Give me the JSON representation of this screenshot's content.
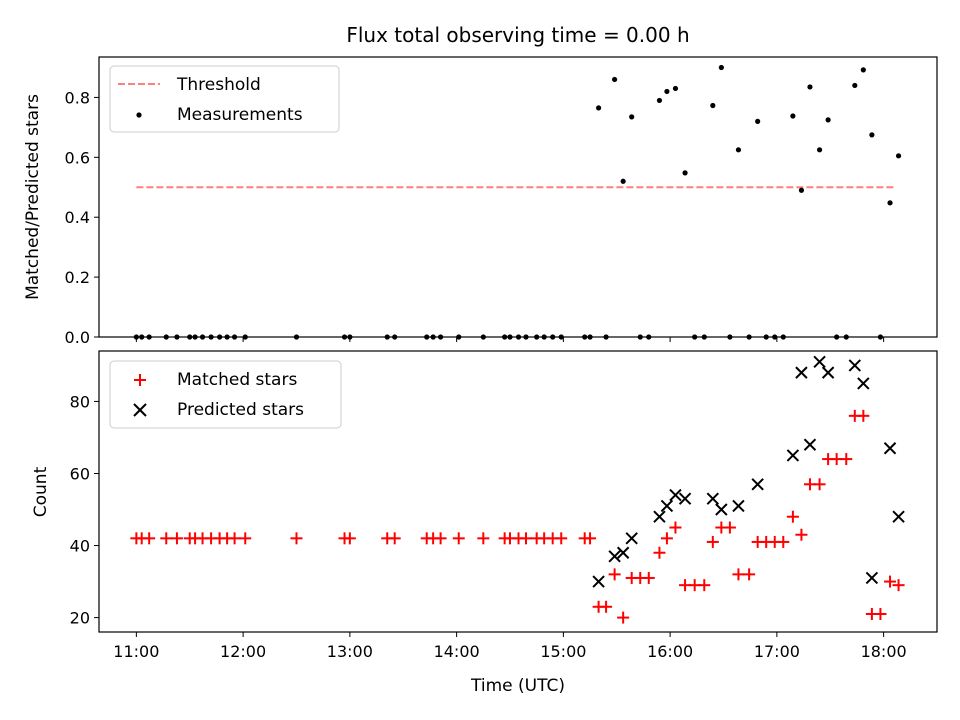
{
  "chart_data": {
    "title": "Flux total observing time = 0.00 h",
    "xlabel": "Time (UTC)",
    "x_ticks": [
      "11:00",
      "12:00",
      "13:00",
      "14:00",
      "15:00",
      "16:00",
      "17:00",
      "18:00"
    ],
    "x_tick_values": [
      11,
      12,
      13,
      14,
      15,
      16,
      17,
      18
    ],
    "xlim": [
      10.65,
      18.5
    ],
    "panels": [
      {
        "type": "scatter",
        "ylabel": "Matched/Predicted stars",
        "ylim": [
          0,
          0.935
        ],
        "y_ticks": [
          0.0,
          0.2,
          0.4,
          0.6,
          0.8
        ],
        "y_tick_labels": [
          "0.0",
          "0.2",
          "0.4",
          "0.6",
          "0.8"
        ],
        "legend": [
          "Threshold",
          "Measurements"
        ],
        "legend_position": "upper-left",
        "threshold": {
          "name": "Threshold",
          "value": 0.5,
          "x_range": [
            11.0,
            18.1
          ],
          "color": "#ff7f7f",
          "style": "dashed"
        },
        "series": [
          {
            "name": "Measurements",
            "marker": "dot",
            "color": "#000000",
            "x": [
              11.0,
              11.05,
              11.12,
              11.28,
              11.38,
              11.5,
              11.55,
              11.62,
              11.7,
              11.78,
              11.85,
              11.92,
              12.02,
              12.5,
              12.95,
              13.0,
              13.35,
              13.42,
              13.72,
              13.78,
              13.85,
              14.02,
              14.25,
              14.45,
              14.5,
              14.58,
              14.65,
              14.75,
              14.82,
              14.9,
              14.98,
              15.2,
              15.25,
              15.33,
              15.4,
              15.48,
              15.56,
              15.64,
              15.72,
              15.8,
              15.9,
              15.97,
              16.05,
              16.14,
              16.23,
              16.32,
              16.4,
              16.48,
              16.56,
              16.64,
              16.74,
              16.82,
              16.9,
              16.98,
              17.06,
              17.15,
              17.23,
              17.31,
              17.4,
              17.48,
              17.56,
              17.65,
              17.73,
              17.81,
              17.89,
              17.97,
              18.06,
              18.14
            ],
            "y": [
              0,
              0,
              0,
              0,
              0,
              0,
              0,
              0,
              0,
              0,
              0,
              0,
              0,
              0,
              0,
              0,
              0,
              0,
              0,
              0,
              0,
              0,
              0,
              0,
              0,
              0,
              0,
              0,
              0,
              0,
              0,
              0,
              0,
              0.765,
              0,
              0.86,
              0.52,
              0.735,
              0,
              0,
              0.79,
              0.82,
              0.83,
              0.548,
              0,
              0,
              0.773,
              0.9,
              0,
              0.625,
              0,
              0.72,
              0,
              0,
              0,
              0.738,
              0.49,
              0.835,
              0.625,
              0.725,
              0,
              0,
              0.84,
              0.892,
              0.675,
              0,
              0.448,
              0.605
            ]
          }
        ]
      },
      {
        "type": "scatter",
        "ylabel": "Count",
        "ylim": [
          16,
          94
        ],
        "y_ticks": [
          20,
          40,
          60,
          80
        ],
        "y_tick_labels": [
          "20",
          "40",
          "60",
          "80"
        ],
        "legend": [
          "Matched stars",
          "Predicted stars"
        ],
        "legend_position": "upper-left",
        "series": [
          {
            "name": "Matched stars",
            "marker": "plus",
            "color": "#ff0000",
            "x": [
              11.0,
              11.05,
              11.12,
              11.28,
              11.38,
              11.5,
              11.55,
              11.62,
              11.7,
              11.78,
              11.85,
              11.92,
              12.02,
              12.5,
              12.95,
              13.0,
              13.35,
              13.42,
              13.72,
              13.78,
              13.85,
              14.02,
              14.25,
              14.45,
              14.5,
              14.58,
              14.65,
              14.75,
              14.82,
              14.9,
              14.98,
              15.2,
              15.25,
              15.33,
              15.4,
              15.48,
              15.56,
              15.64,
              15.72,
              15.8,
              15.9,
              15.97,
              16.05,
              16.14,
              16.23,
              16.32,
              16.4,
              16.48,
              16.56,
              16.64,
              16.74,
              16.82,
              16.9,
              16.98,
              17.06,
              17.15,
              17.23,
              17.31,
              17.4,
              17.48,
              17.56,
              17.65,
              17.73,
              17.81,
              17.89,
              17.97,
              18.06,
              18.14
            ],
            "y": [
              42,
              42,
              42,
              42,
              42,
              42,
              42,
              42,
              42,
              42,
              42,
              42,
              42,
              42,
              42,
              42,
              42,
              42,
              42,
              42,
              42,
              42,
              42,
              42,
              42,
              42,
              42,
              42,
              42,
              42,
              42,
              42,
              42,
              23,
              23,
              32,
              20,
              31,
              31,
              31,
              38,
              42,
              45,
              29,
              29,
              29,
              41,
              45,
              45,
              32,
              32,
              41,
              41,
              41,
              41,
              48,
              43,
              57,
              57,
              64,
              64,
              64,
              76,
              76,
              21,
              21,
              30,
              29
            ]
          },
          {
            "name": "Predicted stars",
            "marker": "x",
            "color": "#000000",
            "x": [
              15.33,
              15.48,
              15.56,
              15.64,
              15.9,
              15.97,
              16.05,
              16.14,
              16.4,
              16.48,
              16.64,
              16.82,
              17.15,
              17.23,
              17.31,
              17.4,
              17.48,
              17.73,
              17.81,
              17.89,
              18.06,
              18.14
            ],
            "y": [
              30,
              37,
              38,
              42,
              48,
              51,
              54,
              53,
              53,
              50,
              51,
              57,
              65,
              88,
              68,
              91,
              88,
              90,
              85,
              31,
              67,
              48
            ]
          }
        ]
      }
    ]
  }
}
